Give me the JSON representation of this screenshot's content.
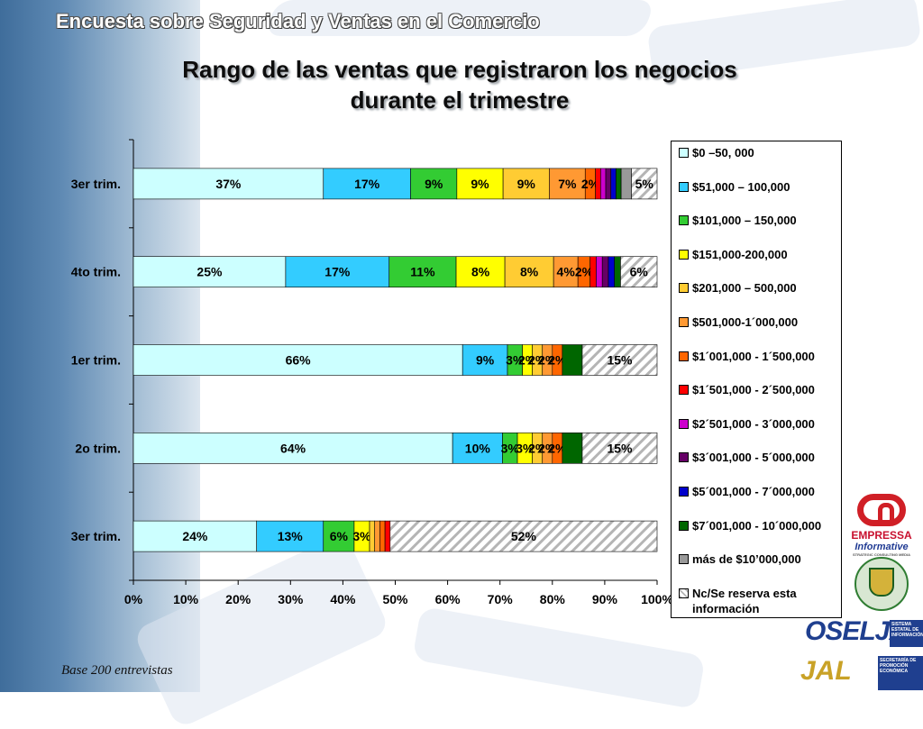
{
  "header": "Encuesta sobre Seguridad y Ventas en el Comercio",
  "title_lines": [
    "Rango de las ventas que registraron los negocios",
    "durante el trimestre"
  ],
  "footnote": "Base 200 entrevistas",
  "colors": {
    "bg_left": "#4f7fae",
    "series": [
      "#ccffff",
      "#33ccff",
      "#33cc33",
      "#ffff00",
      "#ffcc33",
      "#ff9933",
      "#ff6600",
      "#ff0000",
      "#cc00cc",
      "#660066",
      "#0000cc",
      "#006600",
      "#999999",
      "#ffffff"
    ]
  },
  "chart_data": {
    "type": "bar",
    "orientation": "horizontal",
    "stacked": "percent",
    "categories": [
      "3er trim.",
      "4to trim.",
      "1er trim.",
      "2o trim.",
      "3er trim."
    ],
    "x_ticks": [
      "0%",
      "10%",
      "20%",
      "30%",
      "40%",
      "50%",
      "60%",
      "70%",
      "80%",
      "90%",
      "100%"
    ],
    "xlim": [
      0,
      100
    ],
    "legend_position": "right",
    "series": [
      {
        "name": "$0 –50, 000",
        "values": [
          37,
          25,
          66,
          64,
          24
        ],
        "labels": [
          "37%",
          "25%",
          "66%",
          "64%",
          "24%"
        ]
      },
      {
        "name": "$51,000 – 100,000",
        "values": [
          17,
          17,
          9,
          10,
          13
        ],
        "labels": [
          "17%",
          "17%",
          "9%",
          "10%",
          "13%"
        ]
      },
      {
        "name": "$101,000 – 150,000",
        "values": [
          9,
          11,
          3,
          3,
          6
        ],
        "labels": [
          "9%",
          "11%",
          "3%",
          "3%",
          "6%"
        ]
      },
      {
        "name": "$151,000-200,000",
        "values": [
          9,
          8,
          2,
          3,
          3
        ],
        "labels": [
          "9%",
          "8%",
          "2%",
          "3%",
          "3%"
        ]
      },
      {
        "name": "$201,000 – 500,000",
        "values": [
          9,
          8,
          2,
          2,
          1
        ],
        "labels": [
          "9%",
          "8%",
          "2%",
          "2%",
          ""
        ]
      },
      {
        "name": "$501,000-1´000,000",
        "values": [
          7,
          4,
          2,
          2,
          1
        ],
        "labels": [
          "7%",
          "4%",
          "2%",
          "2%",
          ""
        ]
      },
      {
        "name": "$1´001,000 - 1´500,000",
        "values": [
          2,
          2,
          2,
          2,
          1
        ],
        "labels": [
          "2%",
          "2%",
          "2%",
          "2%",
          ""
        ]
      },
      {
        "name": "$1´501,000 - 2´500,000",
        "values": [
          1,
          1,
          0,
          0,
          1
        ],
        "labels": [
          "",
          "",
          "",
          "",
          ""
        ]
      },
      {
        "name": "$2´501,000 - 3´000,000",
        "values": [
          1,
          1,
          0,
          0,
          0
        ],
        "labels": [
          "",
          "",
          "",
          "",
          ""
        ]
      },
      {
        "name": "$3´001,000 -  5´000,000",
        "values": [
          1,
          1,
          0,
          0,
          0
        ],
        "labels": [
          "",
          "",
          "",
          "",
          ""
        ]
      },
      {
        "name": "$5´001,000 - 7´000,000",
        "values": [
          1,
          1,
          0,
          0,
          0
        ],
        "labels": [
          "",
          "",
          "",
          "",
          ""
        ]
      },
      {
        "name": "$7´001,000 - 10´000,000",
        "values": [
          1,
          1,
          4,
          4,
          0
        ],
        "labels": [
          "",
          "",
          "",
          "",
          ""
        ]
      },
      {
        "name": "más de $10’000,000",
        "values": [
          2,
          0,
          0,
          0,
          0
        ],
        "labels": [
          "",
          "",
          "",
          "",
          ""
        ]
      },
      {
        "name": "Nc/Se reserva esta información",
        "values": [
          5,
          6,
          15,
          15,
          52
        ],
        "labels": [
          "5%",
          "6%",
          "15%",
          "15%",
          "52%"
        ]
      }
    ]
  }
}
